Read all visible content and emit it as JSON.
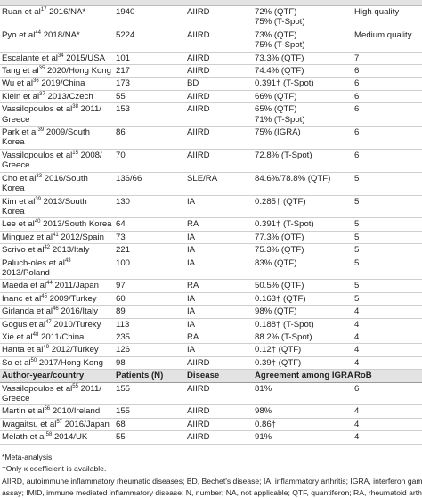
{
  "table": {
    "rows": [
      {
        "author": "Ruan et al",
        "ref": "17",
        "rest": " 2016/NA*",
        "n": "1940",
        "disease": "AIIRD",
        "agreement": [
          "72% (QTF)",
          "75% (T-Spot)"
        ],
        "rob": "High quality"
      },
      {
        "author": "Pyo et al",
        "ref": "44",
        "rest": " 2018/NA*",
        "n": "5224",
        "disease": "AIIRD",
        "agreement": [
          "73% (QTF)",
          "75% (T-Spot)"
        ],
        "rob": "Medium quality"
      },
      {
        "author": "Escalante et al",
        "ref": "34",
        "rest": " 2015/USA",
        "n": "101",
        "disease": "AIIRD",
        "agreement": [
          "73.3% (QTF)"
        ],
        "rob": "7"
      },
      {
        "author": "Tang et al",
        "ref": "35",
        "rest": " 2020/Hong Kong",
        "n": "217",
        "disease": "AIIRD",
        "agreement": [
          "74.4% (QTF)"
        ],
        "rob": "6"
      },
      {
        "author": "Wu et al",
        "ref": "36",
        "rest": " 2019/China",
        "n": "173",
        "disease": "BD",
        "agreement": [
          "0.391† (T-Spot)"
        ],
        "rob": "6"
      },
      {
        "author": "Klein et al",
        "ref": "37",
        "rest": " 2013/Czech",
        "n": "55",
        "disease": "AIIRD",
        "agreement": [
          "66% (QTF)"
        ],
        "rob": "6"
      },
      {
        "author": "Vassilopoulos et al",
        "ref": "38",
        "rest": " 2011/ Greece",
        "n": "153",
        "disease": "AIIRD",
        "agreement": [
          "65% (QTF)",
          "71% (T-Spot)"
        ],
        "rob": "6"
      },
      {
        "author": "Park et al",
        "ref": "39",
        "rest": " 2009/South Korea",
        "n": "86",
        "disease": "AIIRD",
        "agreement": [
          "75% (IGRA)"
        ],
        "rob": "6"
      },
      {
        "author": "Vassilopoulos et al",
        "ref": "15",
        "rest": " 2008/ Greece",
        "n": "70",
        "disease": "AIIRD",
        "agreement": [
          "72.8% (T-Spot)"
        ],
        "rob": "6"
      },
      {
        "author": "Cho et al",
        "ref": "33",
        "rest": " 2016/South Korea",
        "n": "136/66",
        "disease": "SLE/RA",
        "agreement": [
          "84.6%/78.8% (QTF)"
        ],
        "rob": "5"
      },
      {
        "author": "Kim et al",
        "ref": "39",
        "rest": " 2013/South Korea",
        "n": "130",
        "disease": "IA",
        "agreement": [
          "0.285† (QTF)"
        ],
        "rob": "5"
      },
      {
        "author": "Lee et al",
        "ref": "40",
        "rest": " 2013/South Korea",
        "n": "64",
        "disease": "RA",
        "agreement": [
          "0.391† (T-Spot)"
        ],
        "rob": "5"
      },
      {
        "author": "Minguez et al",
        "ref": "41",
        "rest": " 2012/Spain",
        "n": "73",
        "disease": "IA",
        "agreement": [
          "77.3% (QTF)"
        ],
        "rob": "5"
      },
      {
        "author": "Scrivo et al",
        "ref": "42",
        "rest": " 2013/Italy",
        "n": "221",
        "disease": "IA",
        "agreement": [
          "75.3% (QTF)"
        ],
        "rob": "5"
      },
      {
        "author": "Paluch-oles et al",
        "ref": "43",
        "rest": " 2013/Poland",
        "n": "100",
        "disease": "IA",
        "agreement": [
          "83% (QTF)"
        ],
        "rob": "5"
      },
      {
        "author": "Maeda et al",
        "ref": "44",
        "rest": " 2011/Japan",
        "n": "97",
        "disease": "RA",
        "agreement": [
          "50.5% (QTF)"
        ],
        "rob": "5"
      },
      {
        "author": "Inanc et al",
        "ref": "45",
        "rest": " 2009/Turkey",
        "n": "60",
        "disease": "IA",
        "agreement": [
          "0.163† (QTF)"
        ],
        "rob": "5"
      },
      {
        "author": "Girlanda et al",
        "ref": "46",
        "rest": " 2016/Italy",
        "n": "89",
        "disease": "IA",
        "agreement": [
          "98% (QTF)"
        ],
        "rob": "4"
      },
      {
        "author": "Gogus et al",
        "ref": "47",
        "rest": " 2010/Tureky",
        "n": "113",
        "disease": "IA",
        "agreement": [
          "0.188† (T-Spot)"
        ],
        "rob": "4"
      },
      {
        "author": "Xie et al",
        "ref": "48",
        "rest": " 2011/China",
        "n": "235",
        "disease": "RA",
        "agreement": [
          "88.2% (T-Spot)"
        ],
        "rob": "4"
      },
      {
        "author": "Hanta et al",
        "ref": "49",
        "rest": " 2012/Turkey",
        "n": "126",
        "disease": "IA",
        "agreement": [
          "0.12† (QTF)"
        ],
        "rob": "4"
      },
      {
        "author": "So et al",
        "ref": "50",
        "rest": " 2017/Hong Kong",
        "n": "98",
        "disease": "AIIRD",
        "agreement": [
          "0.39† (QTF)"
        ],
        "rob": "4"
      }
    ],
    "header2": [
      "Author-year/country",
      "Patients (N)",
      "Disease",
      "Agreement among IGRA",
      "RoB"
    ],
    "rows2": [
      {
        "author": "Vassilopoulos et al",
        "ref": "55",
        "rest": " 2011/ Greece",
        "n": "155",
        "disease": "AIIRD",
        "agreement": [
          "81%"
        ],
        "rob": "6"
      },
      {
        "author": "Martin et al",
        "ref": "56",
        "rest": " 2010/Ireland",
        "n": "155",
        "disease": "AIIRD",
        "agreement": [
          "98%"
        ],
        "rob": "4"
      },
      {
        "author": "Iwagaitsu et al",
        "ref": "57",
        "rest": " 2016/Japan",
        "n": "68",
        "disease": "AIIRD",
        "agreement": [
          "0.86†"
        ],
        "rob": "4"
      },
      {
        "author": "Melath et al",
        "ref": "58",
        "rest": " 2014/UK",
        "n": "55",
        "disease": "AIIRD",
        "agreement": [
          "91%"
        ],
        "rob": "4"
      }
    ]
  },
  "footnotes": [
    "*Meta-analysis.",
    "†Only κ coefficient is available.",
    "AIIRD, autoimmune inflammatory rheumatic diseases; BD, Bechet's disease; IA, inflammatory arthritis; IGRA, interferon gamma release",
    "assay; IMID, immune mediated inflammatory disease; N, number; NA, not applicable; QTF, quantiferon; RA, rheumatoid arthritis; RoB, risk of"
  ]
}
